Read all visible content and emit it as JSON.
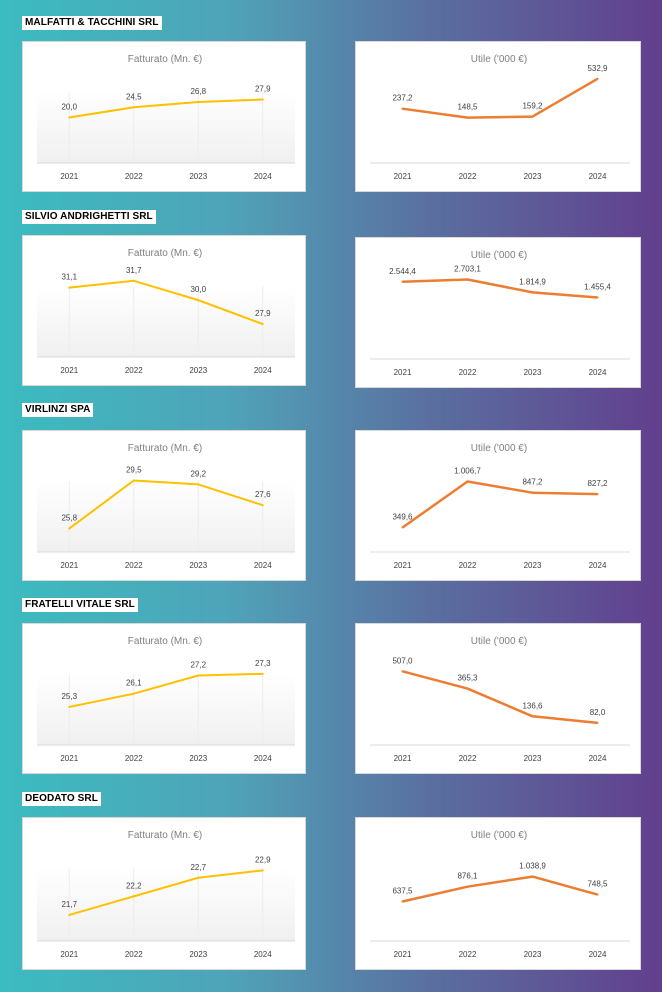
{
  "companies": [
    {
      "name": "MALFATTI & TACCHINI SRL"
    },
    {
      "name": "SILVIO ANDRIGHETTI SRL"
    },
    {
      "name": "VIRLINZI SPA"
    },
    {
      "name": "FRATELLI VITALE SRL"
    },
    {
      "name": "DEODATO SRL"
    }
  ],
  "colors": {
    "revenue": "#ffc000",
    "profit": "#ed7d31"
  },
  "chart_data": [
    {
      "company": "MALFATTI & TACCHINI SRL",
      "metric": "revenue",
      "type": "line",
      "title": "Fatturato  (Mn. €)",
      "categories": [
        "2021",
        "2022",
        "2023",
        "2024"
      ],
      "values": [
        20.0,
        24.5,
        26.8,
        27.9
      ],
      "labels": [
        "20,0",
        "24,5",
        "26,8",
        "27,9"
      ],
      "ylim": [
        0,
        40
      ],
      "xlabel": "",
      "ylabel": ""
    },
    {
      "company": "MALFATTI & TACCHINI SRL",
      "metric": "profit",
      "type": "line",
      "title": "Utile ('000 €)",
      "categories": [
        "2021",
        "2022",
        "2023",
        "2024"
      ],
      "values": [
        237.2,
        148.5,
        159.2,
        532.9
      ],
      "labels": [
        "237,2",
        "148,5",
        "159,2",
        "532,9"
      ],
      "ylim": [
        -300,
        600
      ],
      "xlabel": "",
      "ylabel": ""
    },
    {
      "company": "SILVIO ANDRIGHETTI SRL",
      "metric": "revenue",
      "type": "line",
      "title": "Fatturato  (Mn. €)",
      "categories": [
        "2021",
        "2022",
        "2023",
        "2024"
      ],
      "values": [
        31.1,
        31.7,
        30.0,
        27.9
      ],
      "labels": [
        "31,1",
        "31,7",
        "30,0",
        "27,9"
      ],
      "ylim": [
        25,
        33
      ],
      "xlabel": "",
      "ylabel": ""
    },
    {
      "company": "SILVIO ANDRIGHETTI SRL",
      "metric": "profit",
      "type": "line",
      "title": "Utile ('000 €)",
      "categories": [
        "2021",
        "2022",
        "2023",
        "2024"
      ],
      "values": [
        2544.4,
        2703.1,
        1814.9,
        1455.4
      ],
      "labels": [
        "2.544,4",
        "2.703,1",
        "1.814,9",
        "1.455,4"
      ],
      "ylim": [
        -2800,
        3500
      ],
      "xlabel": "",
      "ylabel": ""
    },
    {
      "company": "VIRLINZI SPA",
      "metric": "revenue",
      "type": "line",
      "title": "Fatturato  (Mn. €)",
      "categories": [
        "2021",
        "2022",
        "2023",
        "2024"
      ],
      "values": [
        25.8,
        29.5,
        29.2,
        27.6
      ],
      "labels": [
        "25,8",
        "29,5",
        "29,2",
        "27,6"
      ],
      "ylim": [
        24,
        31
      ],
      "xlabel": "",
      "ylabel": ""
    },
    {
      "company": "VIRLINZI SPA",
      "metric": "profit",
      "type": "line",
      "title": "Utile ('000 €)",
      "categories": [
        "2021",
        "2022",
        "2023",
        "2024"
      ],
      "values": [
        349.6,
        1006.7,
        847.2,
        827.2
      ],
      "labels": [
        "349,6",
        "1.006,7",
        "847,2",
        "827,2"
      ],
      "ylim": [
        0,
        1300
      ],
      "xlabel": "",
      "ylabel": ""
    },
    {
      "company": "FRATELLI VITALE SRL",
      "metric": "revenue",
      "type": "line",
      "title": "Fatturato  (Mn. €)",
      "categories": [
        "2021",
        "2022",
        "2023",
        "2024"
      ],
      "values": [
        25.3,
        26.1,
        27.2,
        27.3
      ],
      "labels": [
        "25,3",
        "26,1",
        "27,2",
        "27,3"
      ],
      "ylim": [
        23,
        28.5
      ],
      "xlabel": "",
      "ylabel": ""
    },
    {
      "company": "FRATELLI VITALE SRL",
      "metric": "profit",
      "type": "line",
      "title": "Utile ('000 €)",
      "categories": [
        "2021",
        "2022",
        "2023",
        "2024"
      ],
      "values": [
        507.0,
        365.3,
        136.6,
        82.0
      ],
      "labels": [
        "507,0",
        "365,3",
        "136,6",
        "82,0"
      ],
      "ylim": [
        -100,
        650
      ],
      "xlabel": "",
      "ylabel": ""
    },
    {
      "company": "DEODATO SRL",
      "metric": "revenue",
      "type": "line",
      "title": "Fatturato  (Mn. €)",
      "categories": [
        "2021",
        "2022",
        "2023",
        "2024"
      ],
      "values": [
        21.7,
        22.2,
        22.7,
        22.9
      ],
      "labels": [
        "21,7",
        "22,2",
        "22,7",
        "22,9"
      ],
      "ylim": [
        21,
        23.5
      ],
      "xlabel": "",
      "ylabel": ""
    },
    {
      "company": "DEODATO SRL",
      "metric": "profit",
      "type": "line",
      "title": "Utile ('000 €)",
      "categories": [
        "2021",
        "2022",
        "2023",
        "2024"
      ],
      "values": [
        637.5,
        876.1,
        1038.9,
        748.5
      ],
      "labels": [
        "637,5",
        "876,1",
        "1.038,9",
        "748,5"
      ],
      "ylim": [
        0,
        1500
      ],
      "xlabel": "",
      "ylabel": ""
    }
  ]
}
